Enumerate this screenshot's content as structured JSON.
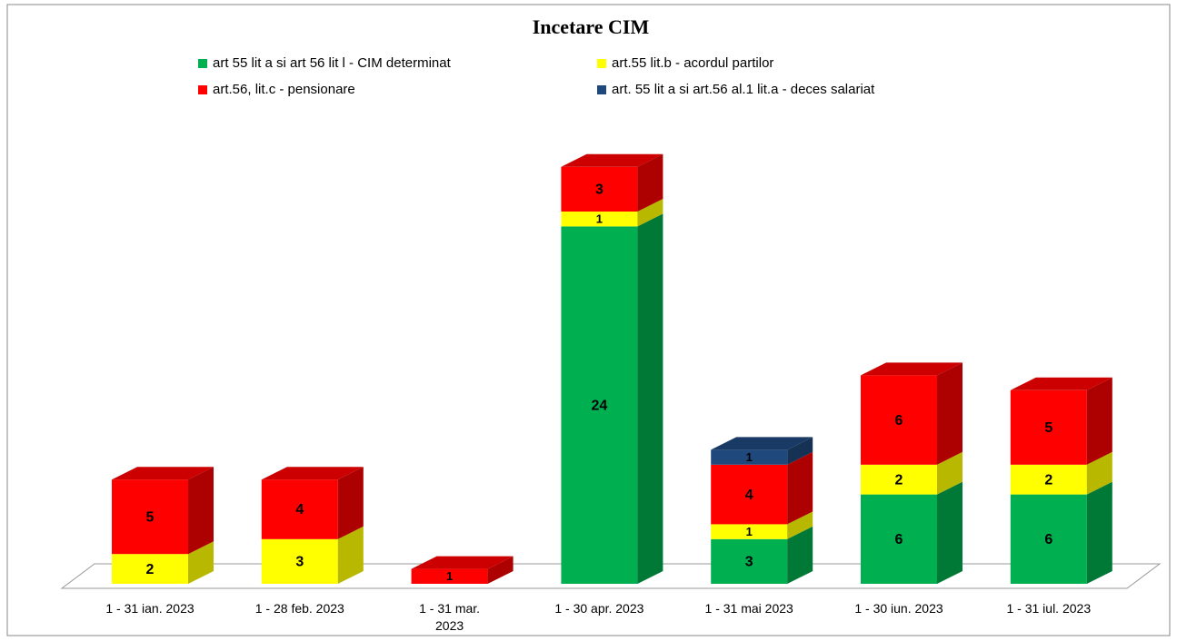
{
  "chart_data": {
    "type": "bar3d_stacked",
    "title": "Incetare CIM",
    "categories": [
      "1 - 31 ian. 2023",
      "1 - 28 feb. 2023",
      "1 - 31 mar. 2023",
      "1 - 30 apr. 2023",
      "1 - 31 mai 2023",
      "1 - 30 iun. 2023",
      "1 - 31 iul. 2023"
    ],
    "series": [
      {
        "name": "art 55 lit a si art 56 lit l - CIM determinat",
        "color": "#00b050",
        "values": [
          null,
          null,
          null,
          24,
          3,
          6,
          6
        ]
      },
      {
        "name": "art.55 lit.b - acordul partilor",
        "color": "#ffff00",
        "values": [
          2,
          3,
          null,
          1,
          1,
          2,
          2
        ]
      },
      {
        "name": "art.56, lit.c - pensionare",
        "color": "#ff0000",
        "values": [
          5,
          4,
          1,
          3,
          4,
          6,
          5
        ]
      },
      {
        "name": "art. 55 lit a si art.56 al.1 lit.a - deces salariat",
        "color": "#1f497d",
        "values": [
          null,
          null,
          null,
          null,
          1,
          null,
          null
        ]
      }
    ]
  }
}
